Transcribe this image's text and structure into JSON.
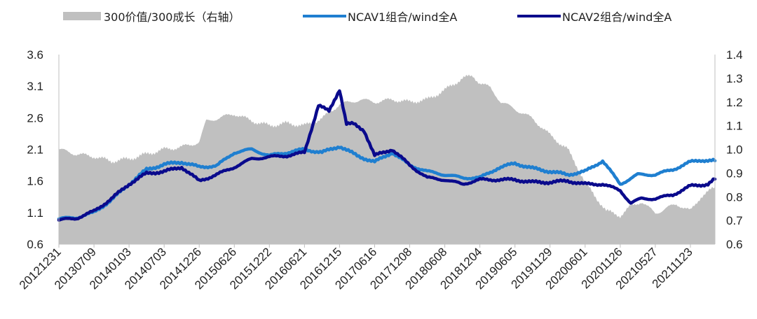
{
  "chart_data": {
    "type": "line",
    "title": "",
    "legend": {
      "placement": "top",
      "entries": [
        {
          "key": "ratio",
          "label": "300价值/300成长（右轴）"
        },
        {
          "key": "ncav1",
          "label": "NCAV1组合/wind全A"
        },
        {
          "key": "ncav2",
          "label": "NCAV2组合/wind全A"
        }
      ]
    },
    "x_tick_labels": [
      "20121231",
      "20130709",
      "20140103",
      "20140703",
      "20141226",
      "20150626",
      "20151222",
      "20160621",
      "20161215",
      "20170616",
      "20171208",
      "20180608",
      "20181204",
      "20190605",
      "20191129",
      "20200601",
      "20201126",
      "20210527",
      "20211123"
    ],
    "y_left": {
      "range": [
        0.6,
        3.6
      ],
      "ticks": [
        "0.6",
        "1.1",
        "1.6",
        "2.1",
        "2.6",
        "3.1",
        "3.6"
      ]
    },
    "y_right": {
      "range": [
        0.6,
        1.4
      ],
      "ticks": [
        "0.6",
        "0.7",
        "0.8",
        "0.9",
        "1.0",
        "1.1",
        "1.2",
        "1.3",
        "1.4"
      ]
    },
    "x_index_range": [
      0,
      18.7
    ],
    "series": [
      {
        "key": "ratio",
        "name": "300价值/300成长（右轴）",
        "kind": "area",
        "axis": "right",
        "color": "#c0c0c0",
        "x": [
          0,
          0.5,
          1,
          1.5,
          2,
          2.5,
          3,
          3.5,
          4,
          4.2,
          4.5,
          5,
          5.5,
          6,
          6.5,
          7,
          7.5,
          8,
          8.3,
          8.6,
          9,
          9.5,
          10,
          10.5,
          11,
          11.5,
          11.8,
          12,
          12.3,
          12.6,
          13,
          13.5,
          14,
          14.5,
          14.8,
          15,
          15.3,
          15.6,
          16,
          16.3,
          16.6,
          17,
          17.3,
          17.6,
          18,
          18.3,
          18.7
        ],
        "y": [
          1.0,
          0.98,
          0.97,
          0.95,
          0.96,
          0.98,
          1.0,
          1.01,
          1.03,
          1.12,
          1.13,
          1.15,
          1.12,
          1.1,
          1.11,
          1.1,
          1.13,
          1.19,
          1.2,
          1.21,
          1.2,
          1.21,
          1.2,
          1.21,
          1.25,
          1.3,
          1.31,
          1.28,
          1.26,
          1.2,
          1.17,
          1.13,
          1.06,
          1.0,
          0.92,
          0.86,
          0.8,
          0.74,
          0.72,
          0.76,
          0.78,
          0.73,
          0.75,
          0.77,
          0.74,
          0.8,
          0.84
        ]
      },
      {
        "key": "ncav1",
        "name": "NCAV1组合/wind全A",
        "kind": "line",
        "axis": "left",
        "color": "#1f7fd0",
        "x": [
          0,
          0.5,
          1,
          1.5,
          2,
          2.5,
          3,
          3.5,
          4,
          4.5,
          5,
          5.5,
          6,
          6.5,
          7,
          7.5,
          8,
          8.5,
          9,
          9.5,
          10,
          10.5,
          11,
          11.5,
          12,
          12.5,
          13,
          13.5,
          14,
          14.5,
          15,
          15.5,
          16,
          16.5,
          17,
          17.5,
          18,
          18.3,
          18.7
        ],
        "y": [
          1.0,
          1.02,
          1.1,
          1.3,
          1.55,
          1.78,
          1.86,
          1.9,
          1.82,
          1.84,
          2.05,
          2.1,
          2.0,
          2.05,
          2.1,
          2.05,
          2.15,
          2.0,
          1.9,
          2.05,
          1.85,
          1.75,
          1.7,
          1.65,
          1.65,
          1.8,
          1.88,
          1.8,
          1.75,
          1.7,
          1.75,
          1.92,
          1.55,
          1.7,
          1.7,
          1.78,
          1.9,
          1.93,
          1.92
        ]
      },
      {
        "key": "ncav2",
        "name": "NCAV2组合/wind全A",
        "kind": "line",
        "axis": "left",
        "color": "#0a0a8c",
        "x": [
          0,
          0.5,
          1,
          1.5,
          2,
          2.5,
          3,
          3.5,
          4,
          4.5,
          5,
          5.5,
          6,
          6.5,
          7,
          7.4,
          7.7,
          8,
          8.2,
          8.4,
          8.7,
          9,
          9.5,
          10,
          10.5,
          11,
          11.5,
          12,
          12.5,
          13,
          13.5,
          14,
          14.5,
          15,
          15.5,
          16,
          16.3,
          16.6,
          17,
          17.5,
          18,
          18.5,
          18.7
        ],
        "y": [
          0.98,
          1.01,
          1.12,
          1.32,
          1.55,
          1.72,
          1.75,
          1.82,
          1.6,
          1.7,
          1.82,
          1.95,
          1.98,
          2.0,
          2.05,
          2.8,
          2.7,
          3.05,
          2.5,
          2.5,
          2.4,
          2.0,
          2.1,
          1.85,
          1.65,
          1.62,
          1.55,
          1.62,
          1.62,
          1.62,
          1.58,
          1.58,
          1.6,
          1.55,
          1.55,
          1.45,
          1.25,
          1.32,
          1.32,
          1.38,
          1.52,
          1.55,
          1.63
        ]
      }
    ]
  }
}
